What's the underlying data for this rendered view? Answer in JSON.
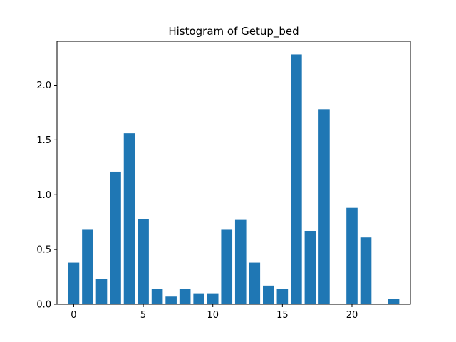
{
  "chart_data": {
    "type": "bar",
    "title": "Histogram of Getup_bed",
    "xlabel": "",
    "ylabel": "",
    "x": [
      0,
      1,
      2,
      3,
      4,
      5,
      6,
      7,
      8,
      9,
      10,
      11,
      12,
      13,
      14,
      15,
      16,
      17,
      18,
      19,
      20,
      21,
      22,
      23
    ],
    "values": [
      0.38,
      0.68,
      0.23,
      1.21,
      1.56,
      0.78,
      0.14,
      0.07,
      0.14,
      0.1,
      0.1,
      0.68,
      0.77,
      0.38,
      0.17,
      0.14,
      2.28,
      0.67,
      1.78,
      0.0,
      0.88,
      0.61,
      0.0,
      0.05
    ],
    "xlim": [
      -1.2,
      24.2
    ],
    "ylim": [
      0,
      2.4
    ],
    "xticks": [
      0,
      5,
      10,
      15,
      20
    ],
    "yticks": [
      0.0,
      0.5,
      1.0,
      1.5,
      2.0
    ],
    "xtick_labels": [
      "0",
      "5",
      "10",
      "15",
      "20"
    ],
    "ytick_labels": [
      "0.0",
      "0.5",
      "1.0",
      "1.5",
      "2.0"
    ],
    "bar_color": "#1f77b4",
    "grid": false,
    "legend": "none"
  }
}
